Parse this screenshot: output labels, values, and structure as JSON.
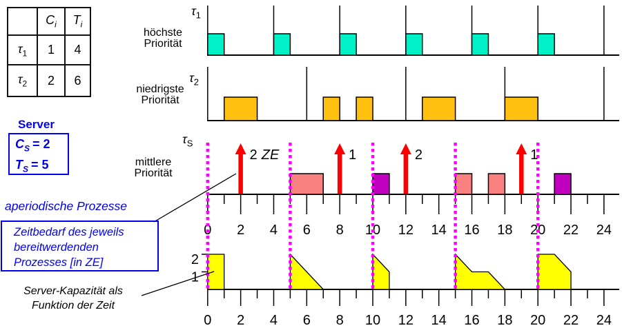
{
  "palette": {
    "blue_text": "#0000EE",
    "task1_fill": "#00F0C8",
    "task2_fill": "#FFC010",
    "server_fill_a": "#F98080",
    "server_fill_b": "#BF00BF",
    "arrow_red": "#FF0000",
    "replenish_magenta": "#FF00FF",
    "capacity_yellow": "#FFFF00"
  },
  "task_table": {
    "col_headers": [
      {
        "base": "C",
        "sub": "i"
      },
      {
        "base": "T",
        "sub": "i"
      }
    ],
    "rows": [
      {
        "label": {
          "base": "τ",
          "sub": "1"
        },
        "c": "1",
        "t": "4"
      },
      {
        "label": {
          "base": "τ",
          "sub": "2"
        },
        "c": "2",
        "t": "6"
      }
    ]
  },
  "server_panel": {
    "title": "Server",
    "lines": [
      {
        "base": "C",
        "sub": "S",
        "rest": "= 2"
      },
      {
        "base": "T",
        "sub": "S",
        "rest": "= 5"
      }
    ]
  },
  "annotations": {
    "aperiodic_label": "aperiodische Prozesse",
    "demand_box_lines": [
      "Zeitbedarf des jeweils",
      "bereitwerdenden",
      "Prozesses [in ZE]"
    ],
    "capacity_caption_lines": [
      "Server-Kapazität als",
      "Funktion der Zeit"
    ]
  },
  "chart_data": {
    "type": "gantt-timeline",
    "time_axis": {
      "min": 0,
      "max": 24,
      "minor_tick_step": 1,
      "label_step": 2,
      "tick_labels": [
        0,
        2,
        4,
        6,
        8,
        10,
        12,
        14,
        16,
        18,
        20,
        22,
        24
      ]
    },
    "replenishment_times": [
      0,
      5,
      10,
      15,
      20
    ],
    "tasks": [
      {
        "name": {
          "base": "τ",
          "sub": "1"
        },
        "priority_lines": [
          "höchste",
          "Priorität"
        ],
        "releases": [
          0,
          4,
          8,
          12,
          16,
          20,
          24
        ],
        "executions": [
          [
            0,
            1
          ],
          [
            4,
            5
          ],
          [
            8,
            9
          ],
          [
            12,
            13
          ],
          [
            16,
            17
          ],
          [
            20,
            21
          ]
        ]
      },
      {
        "name": {
          "base": "τ",
          "sub": "2"
        },
        "priority_lines": [
          "niedrigste",
          "Priorität"
        ],
        "releases": [
          0,
          6,
          12,
          18,
          24
        ],
        "executions": [
          [
            1,
            3
          ],
          [
            7,
            8
          ],
          [
            9,
            10
          ],
          [
            13,
            15
          ],
          [
            18,
            20
          ]
        ]
      },
      {
        "name": {
          "base": "τ",
          "sub": "S"
        },
        "priority_lines": [
          "mittlere",
          "Priorität"
        ],
        "aperiodic_arrivals": [
          {
            "time": 2,
            "label": "2 ZE"
          },
          {
            "time": 8,
            "label": "1"
          },
          {
            "time": 12,
            "label": "2"
          },
          {
            "time": 19,
            "label": "1"
          }
        ],
        "executions": [
          [
            5,
            7
          ],
          [
            10,
            11
          ],
          [
            15,
            16
          ],
          [
            17,
            18
          ],
          [
            21,
            22
          ]
        ],
        "execution_colors": [
          "a",
          "b",
          "a",
          "a",
          "b"
        ]
      }
    ],
    "server_capacity": {
      "y_ticks": [
        2,
        1
      ],
      "polygons": [
        [
          [
            0,
            2
          ],
          [
            1,
            2
          ],
          [
            1,
            0
          ],
          [
            0,
            0
          ]
        ],
        [
          [
            5,
            2
          ],
          [
            7,
            0
          ],
          [
            5,
            0
          ]
        ],
        [
          [
            10,
            2
          ],
          [
            11,
            1
          ],
          [
            11,
            0
          ],
          [
            10,
            0
          ]
        ],
        [
          [
            15,
            2
          ],
          [
            16,
            1
          ],
          [
            17,
            1
          ],
          [
            18,
            0
          ],
          [
            15,
            0
          ]
        ],
        [
          [
            20,
            2
          ],
          [
            21,
            2
          ],
          [
            22,
            1
          ],
          [
            22,
            0
          ],
          [
            20,
            0
          ]
        ]
      ]
    }
  }
}
